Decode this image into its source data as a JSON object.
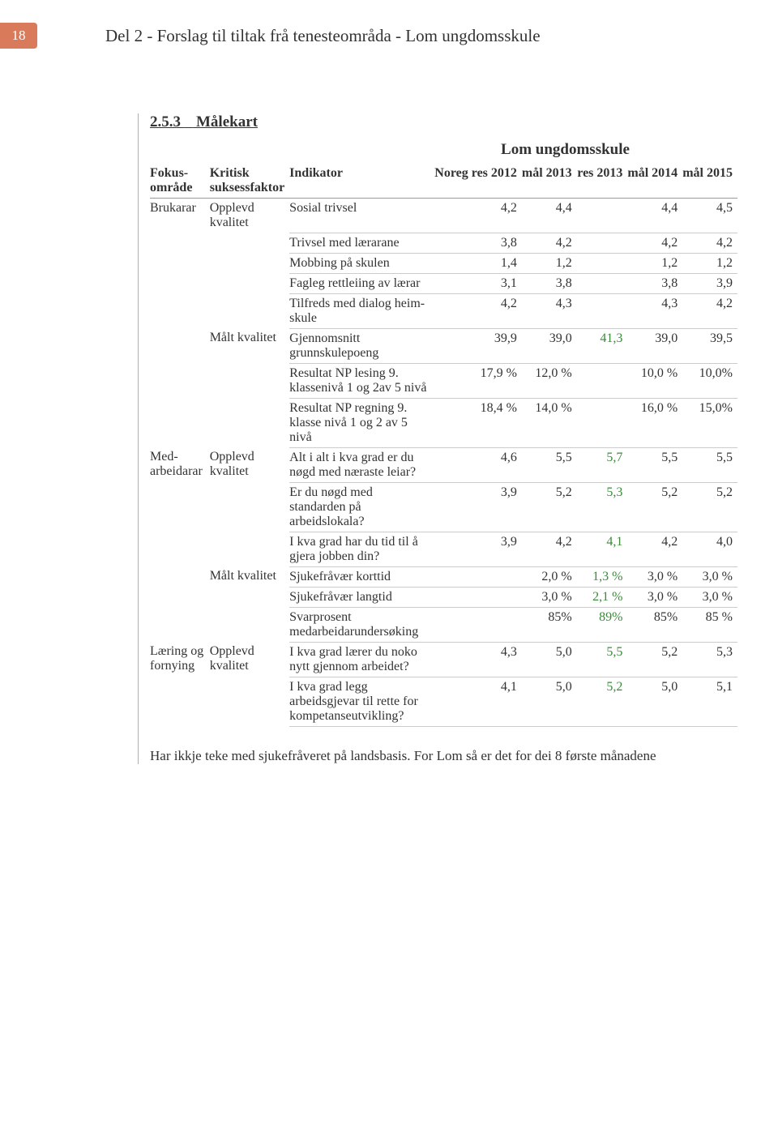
{
  "page_number": "18",
  "header_title": "Del 2 - Forslag til tiltak frå tenesteområda - Lom ungdomsskule",
  "section_number": "2.5.3",
  "section_title": "Målekart",
  "table_title": "Lom ungdomsskule",
  "columns": {
    "fokus": "Fokus-område",
    "kritisk": "Kritisk suksessfaktor",
    "indikator": "Indikator",
    "noreg": "Noreg res 2012",
    "mal2013": "mål 2013",
    "res2013": "res 2013",
    "mal2014": "mål 2014",
    "mal2015": "mål 2015"
  },
  "rows": [
    {
      "fokus": "Brukarar",
      "kritisk": "Opplevd kvalitet",
      "indikator": "Sosial trivsel",
      "v": [
        "4,2",
        "4,4",
        "",
        "4,4",
        "4,5"
      ]
    },
    {
      "fokus": "",
      "kritisk": "",
      "indikator": "Trivsel med lærarane",
      "v": [
        "3,8",
        "4,2",
        "",
        "4,2",
        "4,2"
      ]
    },
    {
      "fokus": "",
      "kritisk": "",
      "indikator": "Mobbing på skulen",
      "v": [
        "1,4",
        "1,2",
        "",
        "1,2",
        "1,2"
      ]
    },
    {
      "fokus": "",
      "kritisk": "",
      "indikator": "Fagleg rettleiing av lærar",
      "v": [
        "3,1",
        "3,8",
        "",
        "3,8",
        "3,9"
      ]
    },
    {
      "fokus": "",
      "kritisk": "",
      "indikator": "Tilfreds med dialog heim-skule",
      "v": [
        "4,2",
        "4,3",
        "",
        "4,3",
        "4,2"
      ]
    },
    {
      "fokus": "",
      "kritisk": "Målt kvalitet",
      "indikator": "Gjennomsnitt grunnskulepoeng",
      "v": [
        "39,9",
        "39,0",
        "41,3",
        "39,0",
        "39,5"
      ]
    },
    {
      "fokus": "",
      "kritisk": "",
      "indikator": "Resultat NP lesing 9. klassenivå 1 og 2av 5 nivå",
      "v": [
        "17,9 %",
        "12,0 %",
        "",
        "10,0 %",
        "10,0%"
      ]
    },
    {
      "fokus": "",
      "kritisk": "",
      "indikator": "Resultat NP regning 9. klasse nivå 1 og 2 av 5 nivå",
      "v": [
        "18,4 %",
        "14,0 %",
        "",
        "16,0 %",
        "15,0%"
      ]
    },
    {
      "fokus": "Med-arbeidarar",
      "kritisk": "Opplevd kvalitet",
      "indikator": "Alt i alt i kva grad er du nøgd med næraste leiar?",
      "v": [
        "4,6",
        "5,5",
        "5,7",
        "5,5",
        "5,5"
      ]
    },
    {
      "fokus": "",
      "kritisk": "",
      "indikator": "Er du nøgd med standarden på arbeidslokala?",
      "v": [
        "3,9",
        "5,2",
        "5,3",
        "5,2",
        "5,2"
      ]
    },
    {
      "fokus": "",
      "kritisk": "",
      "indikator": "I kva grad har du tid til å gjera jobben din?",
      "v": [
        "3,9",
        "4,2",
        "4,1",
        "4,2",
        "4,0"
      ]
    },
    {
      "fokus": "",
      "kritisk": "Målt kvalitet",
      "indikator": "Sjukefråvær korttid",
      "v": [
        "",
        "2,0 %",
        "1,3 %",
        "3,0 %",
        "3,0 %"
      ]
    },
    {
      "fokus": "",
      "kritisk": "",
      "indikator": "Sjukefråvær langtid",
      "v": [
        "",
        "3,0 %",
        "2,1 %",
        "3,0 %",
        "3,0 %"
      ]
    },
    {
      "fokus": "",
      "kritisk": "",
      "indikator": "Svarprosent medarbeidarundersøking",
      "v": [
        "",
        "85%",
        "89%",
        "85%",
        "85 %"
      ]
    },
    {
      "fokus": "Læring og fornying",
      "kritisk": "Opplevd kvalitet",
      "indikator": "I kva grad lærer du noko nytt gjennom arbeidet?",
      "v": [
        "4,3",
        "5,0",
        "5,5",
        "5,2",
        "5,3"
      ]
    },
    {
      "fokus": "",
      "kritisk": "",
      "indikator": "I kva grad legg arbeidsgjevar til rette for kompetanseutvikling?",
      "v": [
        "4,1",
        "5,0",
        "5,2",
        "5,0",
        "5,1"
      ]
    }
  ],
  "footer_note": "Har ikkje teke med sjukefråveret på landsbasis. For Lom så er det for dei 8 første månadene",
  "colors": {
    "tab_bg": "#d97b5a",
    "result_highlight": "#3a8a3a",
    "border": "#cccccc",
    "text": "#333333"
  }
}
